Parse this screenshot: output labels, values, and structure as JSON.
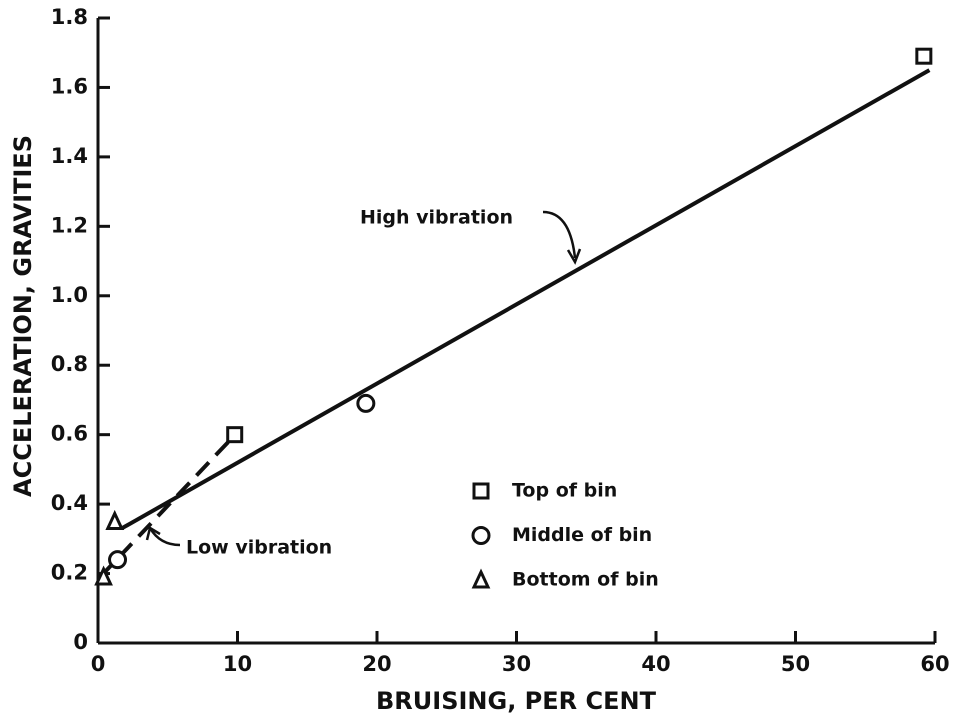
{
  "chart_data": {
    "type": "scatter",
    "x_label": "BRUISING, PER CENT",
    "y_label": "ACCELERATION, GRAVITIES",
    "xlim": [
      0,
      60
    ],
    "ylim": [
      0,
      1.8
    ],
    "xticks": [
      0,
      10,
      20,
      30,
      40,
      50,
      60
    ],
    "yticks": [
      0,
      0.2,
      0.4,
      0.6,
      0.8,
      {
        "value": 1,
        "label": "1.0"
      },
      1.2,
      1.4,
      1.6,
      1.8
    ],
    "color": "#111111",
    "series": [
      {
        "name": "Top of bin",
        "marker": "square",
        "x": [
          9.8,
          59.2
        ],
        "values": [
          0.6,
          1.69
        ]
      },
      {
        "name": "Middle of bin",
        "marker": "circle",
        "x": [
          19.2,
          1.4
        ],
        "values": [
          0.69,
          0.24
        ]
      },
      {
        "name": "Bottom of bin",
        "marker": "triangle",
        "x": [
          1.2,
          0.4
        ],
        "values": [
          0.35,
          0.19
        ]
      }
    ],
    "fit_lines": [
      {
        "label": "High vibration",
        "dashed": false,
        "x": [
          1.7,
          59.6
        ],
        "values": [
          0.33,
          1.65
        ]
      },
      {
        "label": "Low vibration",
        "dashed": true,
        "x": [
          0.15,
          9.6
        ],
        "values": [
          0.19,
          0.59
        ]
      }
    ]
  }
}
